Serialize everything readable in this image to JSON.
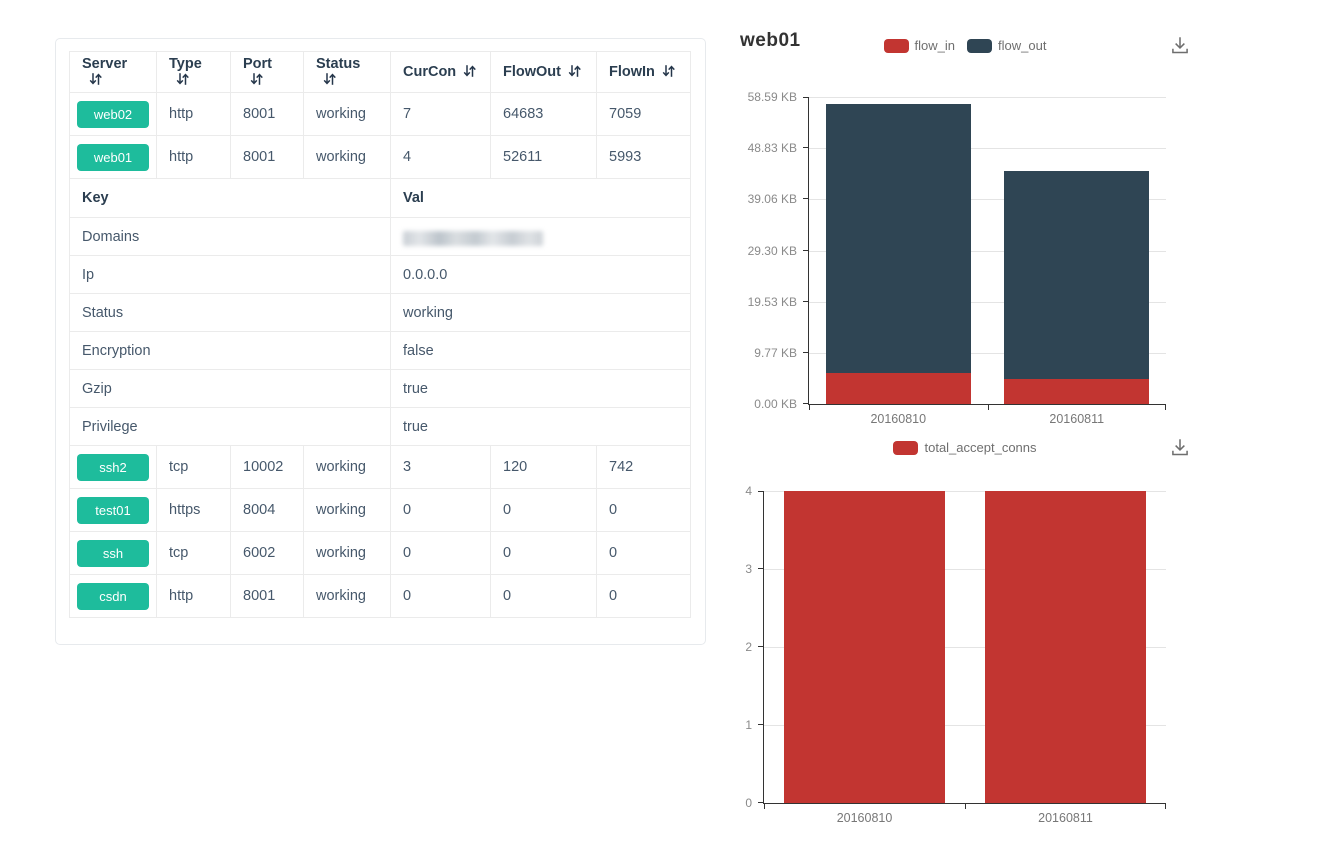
{
  "server_table": {
    "columns": [
      {
        "label": "Server"
      },
      {
        "label": "Type"
      },
      {
        "label": "Port"
      },
      {
        "label": "Status"
      },
      {
        "label": "CurCon"
      },
      {
        "label": "FlowOut"
      },
      {
        "label": "FlowIn"
      }
    ],
    "rows_top": [
      {
        "server": "web02",
        "type": "http",
        "port": "8001",
        "status": "working",
        "curcon": "7",
        "flowout": "64683",
        "flowin": "7059"
      },
      {
        "server": "web01",
        "type": "http",
        "port": "8001",
        "status": "working",
        "curcon": "4",
        "flowout": "52611",
        "flowin": "5993"
      }
    ],
    "detail_header": {
      "key": "Key",
      "val": "Val"
    },
    "detail_rows": [
      {
        "key": "Domains",
        "val": "",
        "redacted": true
      },
      {
        "key": "Ip",
        "val": "0.0.0.0"
      },
      {
        "key": "Status",
        "val": "working"
      },
      {
        "key": "Encryption",
        "val": "false"
      },
      {
        "key": "Gzip",
        "val": "true"
      },
      {
        "key": "Privilege",
        "val": "true"
      }
    ],
    "rows_bottom": [
      {
        "server": "ssh2",
        "type": "tcp",
        "port": "10002",
        "status": "working",
        "curcon": "3",
        "flowout": "120",
        "flowin": "742"
      },
      {
        "server": "test01",
        "type": "https",
        "port": "8004",
        "status": "working",
        "curcon": "0",
        "flowout": "0",
        "flowin": "0"
      },
      {
        "server": "ssh",
        "type": "tcp",
        "port": "6002",
        "status": "working",
        "curcon": "0",
        "flowout": "0",
        "flowin": "0"
      },
      {
        "server": "csdn",
        "type": "http",
        "port": "8001",
        "status": "working",
        "curcon": "0",
        "flowout": "0",
        "flowin": "0"
      }
    ],
    "colors": {
      "badge": "#1ebc9c",
      "header_text": "#2b3e50",
      "cell_text": "#46586b",
      "border": "#ebebeb"
    }
  },
  "icons": {
    "sort": "sort-arrows-down-up",
    "download": "download-to-tray"
  },
  "chart_data": [
    {
      "type": "bar",
      "stacked": true,
      "title": "web01",
      "categories": [
        "20160810",
        "20160811"
      ],
      "series": [
        {
          "name": "flow_in",
          "color": "#c23531",
          "values": [
            5.85,
            4.69
          ]
        },
        {
          "name": "flow_out",
          "color": "#2f4554",
          "values": [
            51.38,
            39.75
          ]
        }
      ],
      "unit": "KB",
      "y_ticks": [
        "0.00 KB",
        "9.77 KB",
        "19.53 KB",
        "29.30 KB",
        "39.06 KB",
        "48.83 KB",
        "58.59 KB"
      ],
      "ylim": [
        0,
        58.59
      ],
      "legend_position": "top",
      "grid": true
    },
    {
      "type": "bar",
      "stacked": false,
      "title": "",
      "categories": [
        "20160810",
        "20160811"
      ],
      "series": [
        {
          "name": "total_accept_conns",
          "color": "#c23531",
          "values": [
            4,
            4
          ]
        }
      ],
      "y_ticks": [
        "0",
        "1",
        "2",
        "3",
        "4"
      ],
      "ylim": [
        0,
        4
      ],
      "legend_position": "top",
      "grid": true
    }
  ]
}
